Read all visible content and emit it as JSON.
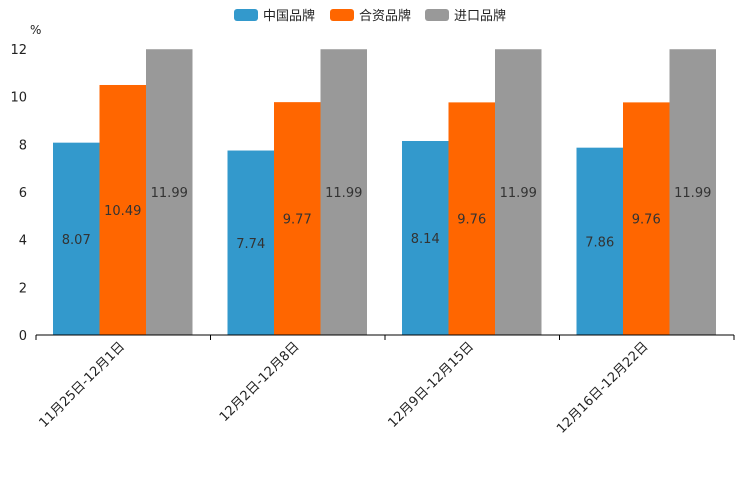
{
  "chart_data": {
    "type": "bar",
    "title": "",
    "xlabel": "",
    "ylabel": "%",
    "ylim": [
      0,
      12
    ],
    "yticks": [
      0,
      2,
      4,
      6,
      8,
      10,
      12
    ],
    "grid": false,
    "legend_position": "top-center",
    "categories": [
      "11月25日-12月1日",
      "12月2日-12月8日",
      "12月9日-12月15日",
      "12月16日-12月22日"
    ],
    "series": [
      {
        "name": "中国品牌",
        "color": "#3399cc",
        "values": [
          8.07,
          7.74,
          8.14,
          7.86
        ],
        "labels": [
          "8.07",
          "7.74",
          "8.14",
          "7.86"
        ]
      },
      {
        "name": "合资品牌",
        "color": "#ff6600",
        "values": [
          10.49,
          9.77,
          9.76,
          9.76
        ],
        "labels": [
          "10.49",
          "9.77",
          "9.76",
          "9.76"
        ]
      },
      {
        "name": "进口品牌",
        "color": "#999999",
        "values": [
          11.99,
          11.99,
          11.99,
          11.99
        ],
        "labels": [
          "11.99",
          "11.99",
          "11.99",
          "11.99"
        ]
      }
    ]
  }
}
